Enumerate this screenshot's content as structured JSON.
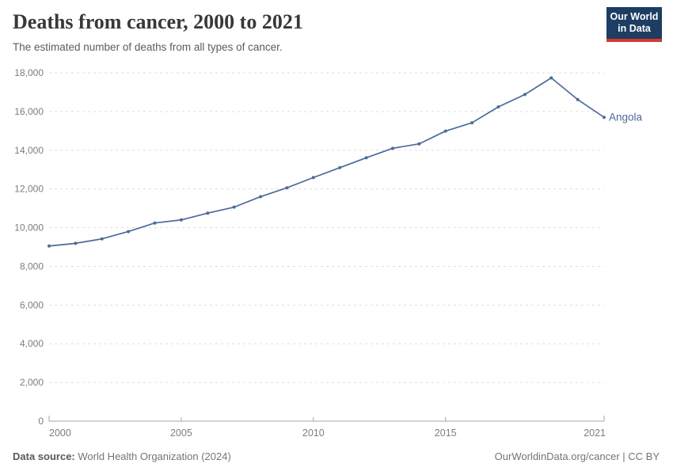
{
  "header": {
    "title": "Deaths from cancer, 2000 to 2021",
    "subtitle": "The estimated number of deaths from all types of cancer.",
    "logo": {
      "line1": "Our World",
      "line2": "in Data",
      "bg": "#1d3d63",
      "stripe": "#d7382d"
    }
  },
  "chart_data": {
    "type": "line",
    "title": "Deaths from cancer, 2000 to 2021",
    "xlabel": "",
    "ylabel": "",
    "x": [
      2000,
      2001,
      2002,
      2003,
      2004,
      2005,
      2006,
      2007,
      2008,
      2009,
      2010,
      2011,
      2012,
      2013,
      2014,
      2015,
      2016,
      2017,
      2018,
      2019,
      2020,
      2021
    ],
    "series": [
      {
        "name": "Angola",
        "color": "#4C6A9C",
        "values": [
          9050,
          9190,
          9420,
          9800,
          10240,
          10400,
          10750,
          11060,
          11600,
          12060,
          12590,
          13100,
          13610,
          14100,
          14330,
          14990,
          15420,
          16240,
          16880,
          17740,
          16620,
          15700
        ]
      }
    ],
    "xlim": [
      2000,
      2021
    ],
    "ylim": [
      0,
      18000
    ],
    "x_ticks": [
      2000,
      2005,
      2010,
      2015,
      2021
    ],
    "y_ticks": [
      0,
      2000,
      4000,
      6000,
      8000,
      10000,
      12000,
      14000,
      16000,
      18000
    ],
    "grid": "horizontal-dashed",
    "legend_position": "end-of-line-label",
    "entity_label": "Angola"
  },
  "footer": {
    "source_label": "Data source:",
    "source_text": " World Health Organization (2024)",
    "credit": "OurWorldinData.org/cancer | CC BY"
  },
  "colors": {
    "line": "#4C6A9C",
    "entity_label": "#4C6A9C",
    "gridline": "#dddddd",
    "axis_line": "#a5a5a5",
    "tick_label": "#7d7d7d",
    "title": "#383838",
    "subtitle": "#5c5c5c",
    "footer": "#757575",
    "logo_bg": "#1d3d63",
    "logo_stripe": "#d7382d"
  }
}
